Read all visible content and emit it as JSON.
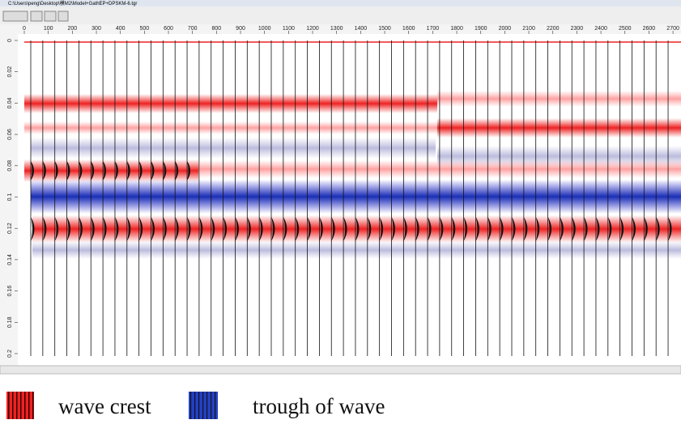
{
  "window": {
    "title": "C:\\Users\\peng\\Desktop\\模M2\\Model+GathEP+DPSKM-6.tgr"
  },
  "ruler": {
    "x_labels": [
      0,
      100,
      200,
      300,
      400,
      500,
      600,
      700,
      800,
      900,
      1000,
      1100,
      1200,
      1300,
      1400,
      1500,
      1600,
      1700,
      1800,
      1900,
      2000,
      2100,
      2200,
      2300,
      2400,
      2500,
      2600,
      2700
    ],
    "y_labels": [
      0,
      0.02,
      0.04,
      0.06,
      0.08,
      0.1,
      0.12,
      0.14,
      0.16,
      0.18,
      0.2
    ]
  },
  "legend": {
    "items": [
      {
        "label": "wave crest"
      },
      {
        "label": "trough of wave"
      }
    ]
  }
}
